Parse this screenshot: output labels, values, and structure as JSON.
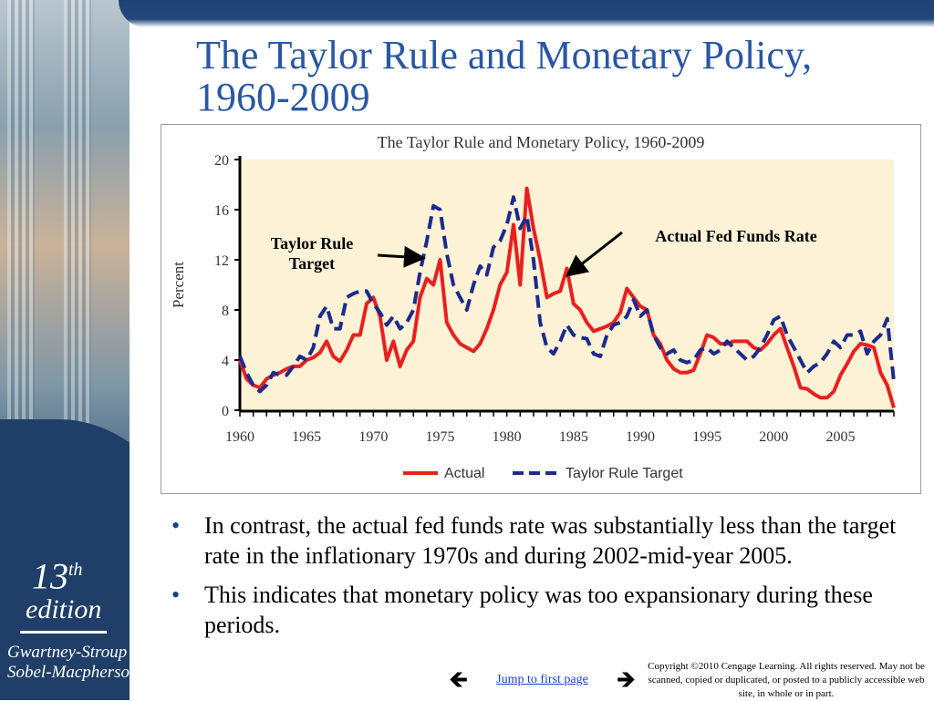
{
  "slide": {
    "title": "The Taylor Rule and Monetary Policy, 1960-2009",
    "bullets": [
      "In contrast, the actual fed funds rate was substantially less than the target rate in the inflationary 1970s and during 2002-mid-year 2005.",
      "This indicates that monetary policy was too expansionary during these periods."
    ],
    "bullet_glyph": "•",
    "nav": {
      "link_label": "Jump to first page",
      "prev_glyph": "🡸",
      "next_glyph": "🡺"
    },
    "copyright": "Copyright ©2010 Cengage Learning. All rights reserved. May not be scanned, copied or duplicated, or posted to a publicly accessible web site, in whole or in part.",
    "branding": {
      "edition_number": "13",
      "edition_suffix": "th",
      "edition_word": "edition",
      "authors_line1": "Gwartney-Stroup",
      "authors_line2": "Sobel-Macpherson"
    },
    "colors": {
      "title": "#2a57a3",
      "band": "#1f4174",
      "plot_bg": "#fdf1d6"
    }
  },
  "chart_data": {
    "type": "line",
    "title": "The Taylor Rule and Monetary Policy, 1960-2009",
    "ylabel": "Percent",
    "xlabel": "",
    "xlim": [
      1960,
      2009
    ],
    "ylim": [
      0,
      20
    ],
    "xticks": [
      1960,
      1965,
      1970,
      1975,
      1980,
      1985,
      1990,
      1995,
      2000,
      2005
    ],
    "yticks": [
      0,
      4,
      8,
      12,
      16,
      20
    ],
    "legend_position": "bottom",
    "annotations": [
      {
        "text_lines": [
          "Taylor Rule",
          "Target"
        ],
        "points_to": "Taylor Rule Target",
        "at": [
          1973.8,
          12.3
        ]
      },
      {
        "text_lines": [
          "Actual Fed Funds Rate"
        ],
        "points_to": "Actual",
        "at": [
          1984.3,
          11.2
        ]
      }
    ],
    "series": [
      {
        "name": "Actual",
        "color": "#e8201e",
        "dash": "solid",
        "points": [
          [
            1960,
            4.0
          ],
          [
            1960.5,
            2.5
          ],
          [
            1961,
            2.0
          ],
          [
            1961.5,
            1.8
          ],
          [
            1962,
            2.5
          ],
          [
            1962.5,
            2.8
          ],
          [
            1963,
            3.0
          ],
          [
            1963.5,
            3.3
          ],
          [
            1964,
            3.5
          ],
          [
            1964.5,
            3.5
          ],
          [
            1965,
            4.0
          ],
          [
            1965.5,
            4.2
          ],
          [
            1966,
            4.6
          ],
          [
            1966.5,
            5.5
          ],
          [
            1967,
            4.3
          ],
          [
            1967.5,
            3.9
          ],
          [
            1968,
            4.8
          ],
          [
            1968.5,
            6.0
          ],
          [
            1969,
            6.0
          ],
          [
            1969.5,
            8.5
          ],
          [
            1970,
            9.0
          ],
          [
            1970.5,
            7.5
          ],
          [
            1971,
            4.0
          ],
          [
            1971.5,
            5.5
          ],
          [
            1972,
            3.5
          ],
          [
            1972.5,
            4.8
          ],
          [
            1973,
            5.5
          ],
          [
            1973.5,
            9.0
          ],
          [
            1974,
            10.5
          ],
          [
            1974.5,
            10.0
          ],
          [
            1975,
            12.0
          ],
          [
            1975.5,
            7.0
          ],
          [
            1976,
            6.0
          ],
          [
            1976.5,
            5.3
          ],
          [
            1977,
            5.0
          ],
          [
            1977.5,
            4.7
          ],
          [
            1978,
            5.3
          ],
          [
            1978.5,
            6.5
          ],
          [
            1979,
            8.0
          ],
          [
            1979.5,
            10.0
          ],
          [
            1980,
            11.0
          ],
          [
            1980.5,
            14.8
          ],
          [
            1981,
            10.0
          ],
          [
            1981.5,
            17.7
          ],
          [
            1982,
            14.5
          ],
          [
            1982.5,
            12.0
          ],
          [
            1983,
            9.0
          ],
          [
            1983.5,
            9.3
          ],
          [
            1984,
            9.5
          ],
          [
            1984.5,
            11.3
          ],
          [
            1985,
            8.5
          ],
          [
            1985.5,
            8.0
          ],
          [
            1986,
            7.0
          ],
          [
            1986.5,
            6.3
          ],
          [
            1987,
            6.5
          ],
          [
            1987.5,
            6.7
          ],
          [
            1988,
            7.0
          ],
          [
            1988.5,
            7.8
          ],
          [
            1989,
            9.7
          ],
          [
            1989.5,
            9.0
          ],
          [
            1990,
            8.3
          ],
          [
            1990.5,
            8.0
          ],
          [
            1991,
            6.0
          ],
          [
            1991.5,
            5.3
          ],
          [
            1992,
            4.0
          ],
          [
            1992.5,
            3.3
          ],
          [
            1993,
            3.0
          ],
          [
            1993.5,
            3.0
          ],
          [
            1994,
            3.2
          ],
          [
            1994.5,
            4.5
          ],
          [
            1995,
            6.0
          ],
          [
            1995.5,
            5.8
          ],
          [
            1996,
            5.3
          ],
          [
            1996.5,
            5.3
          ],
          [
            1997,
            5.5
          ],
          [
            1997.5,
            5.5
          ],
          [
            1998,
            5.5
          ],
          [
            1998.5,
            5.0
          ],
          [
            1999,
            4.8
          ],
          [
            1999.5,
            5.3
          ],
          [
            2000,
            6.0
          ],
          [
            2000.5,
            6.5
          ],
          [
            2001,
            5.0
          ],
          [
            2001.5,
            3.5
          ],
          [
            2002,
            1.8
          ],
          [
            2002.5,
            1.7
          ],
          [
            2003,
            1.3
          ],
          [
            2003.5,
            1.0
          ],
          [
            2004,
            1.0
          ],
          [
            2004.5,
            1.5
          ],
          [
            2005,
            2.8
          ],
          [
            2005.5,
            3.7
          ],
          [
            2006,
            4.7
          ],
          [
            2006.5,
            5.3
          ],
          [
            2007,
            5.2
          ],
          [
            2007.5,
            5.0
          ],
          [
            2008,
            3.0
          ],
          [
            2008.5,
            2.0
          ],
          [
            2009,
            0.2
          ]
        ]
      },
      {
        "name": "Taylor Rule Target",
        "color": "#1b2b8c",
        "dash": "dashed",
        "points": [
          [
            1960,
            4.3
          ],
          [
            1960.5,
            3.0
          ],
          [
            1961,
            2.0
          ],
          [
            1961.5,
            1.5
          ],
          [
            1962,
            2.0
          ],
          [
            1962.5,
            3.0
          ],
          [
            1963,
            2.8
          ],
          [
            1963.5,
            2.8
          ],
          [
            1964,
            3.5
          ],
          [
            1964.5,
            4.3
          ],
          [
            1965,
            4.0
          ],
          [
            1965.5,
            5.0
          ],
          [
            1966,
            7.5
          ],
          [
            1966.5,
            8.3
          ],
          [
            1967,
            6.5
          ],
          [
            1967.5,
            6.5
          ],
          [
            1968,
            9.0
          ],
          [
            1968.5,
            9.3
          ],
          [
            1969,
            9.5
          ],
          [
            1969.5,
            9.5
          ],
          [
            1970,
            8.5
          ],
          [
            1970.5,
            7.8
          ],
          [
            1971,
            6.8
          ],
          [
            1971.5,
            7.5
          ],
          [
            1972,
            6.5
          ],
          [
            1972.5,
            7.0
          ],
          [
            1973,
            8.0
          ],
          [
            1973.5,
            11.0
          ],
          [
            1974,
            13.5
          ],
          [
            1974.5,
            16.3
          ],
          [
            1975,
            16.0
          ],
          [
            1975.5,
            12.5
          ],
          [
            1976,
            10.0
          ],
          [
            1976.5,
            9.0
          ],
          [
            1977,
            8.0
          ],
          [
            1977.5,
            10.0
          ],
          [
            1978,
            11.5
          ],
          [
            1978.5,
            10.8
          ],
          [
            1979,
            13.0
          ],
          [
            1979.5,
            13.5
          ],
          [
            1980,
            14.8
          ],
          [
            1980.5,
            17.0
          ],
          [
            1981,
            14.5
          ],
          [
            1981.5,
            15.5
          ],
          [
            1982,
            12.0
          ],
          [
            1982.5,
            7.0
          ],
          [
            1983,
            5.0
          ],
          [
            1983.5,
            4.5
          ],
          [
            1984,
            5.5
          ],
          [
            1984.5,
            6.8
          ],
          [
            1985,
            6.0
          ],
          [
            1985.5,
            5.8
          ],
          [
            1986,
            5.7
          ],
          [
            1986.5,
            4.5
          ],
          [
            1987,
            4.3
          ],
          [
            1987.5,
            6.0
          ],
          [
            1988,
            6.8
          ],
          [
            1988.5,
            7.0
          ],
          [
            1989,
            7.5
          ],
          [
            1989.5,
            8.8
          ],
          [
            1990,
            7.5
          ],
          [
            1990.5,
            8.0
          ],
          [
            1991,
            6.0
          ],
          [
            1991.5,
            5.0
          ],
          [
            1992,
            4.5
          ],
          [
            1992.5,
            4.8
          ],
          [
            1993,
            4.0
          ],
          [
            1993.5,
            3.8
          ],
          [
            1994,
            4.0
          ],
          [
            1994.5,
            4.8
          ],
          [
            1995,
            5.0
          ],
          [
            1995.5,
            4.5
          ],
          [
            1996,
            4.8
          ],
          [
            1996.5,
            5.5
          ],
          [
            1997,
            5.0
          ],
          [
            1997.5,
            4.5
          ],
          [
            1998,
            4.0
          ],
          [
            1998.5,
            4.3
          ],
          [
            1999,
            5.0
          ],
          [
            1999.5,
            6.0
          ],
          [
            2000,
            7.2
          ],
          [
            2000.5,
            7.5
          ],
          [
            2001,
            6.0
          ],
          [
            2001.5,
            5.0
          ],
          [
            2002,
            4.0
          ],
          [
            2002.5,
            3.0
          ],
          [
            2003,
            3.5
          ],
          [
            2003.5,
            3.8
          ],
          [
            2004,
            4.5
          ],
          [
            2004.5,
            5.5
          ],
          [
            2005,
            5.0
          ],
          [
            2005.5,
            6.0
          ],
          [
            2006,
            6.0
          ],
          [
            2006.5,
            6.3
          ],
          [
            2007,
            4.5
          ],
          [
            2007.5,
            5.5
          ],
          [
            2008,
            6.0
          ],
          [
            2008.5,
            7.3
          ],
          [
            2009,
            2.3
          ]
        ]
      }
    ]
  }
}
